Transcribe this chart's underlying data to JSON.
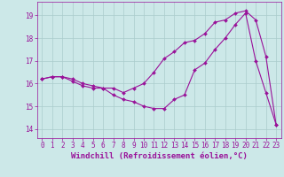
{
  "xlabel": "Windchill (Refroidissement éolien,°C)",
  "background_color": "#cce8e8",
  "line_color": "#991199",
  "grid_color": "#aacccc",
  "xlim": [
    -0.5,
    23.5
  ],
  "ylim": [
    13.6,
    19.6
  ],
  "yticks": [
    14,
    15,
    16,
    17,
    18,
    19
  ],
  "xticks": [
    0,
    1,
    2,
    3,
    4,
    5,
    6,
    7,
    8,
    9,
    10,
    11,
    12,
    13,
    14,
    15,
    16,
    17,
    18,
    19,
    20,
    21,
    22,
    23
  ],
  "line1_x": [
    0,
    1,
    2,
    3,
    4,
    5,
    6,
    7,
    8,
    9,
    10,
    11,
    12,
    13,
    14,
    15,
    16,
    17,
    18,
    19,
    20,
    21,
    22,
    23
  ],
  "line1_y": [
    16.2,
    16.3,
    16.3,
    16.1,
    15.9,
    15.8,
    15.8,
    15.8,
    15.6,
    15.8,
    16.0,
    16.5,
    17.1,
    17.4,
    17.8,
    17.9,
    18.2,
    18.7,
    18.8,
    19.1,
    19.2,
    18.8,
    17.2,
    14.2
  ],
  "line2_x": [
    0,
    1,
    2,
    3,
    4,
    5,
    6,
    7,
    8,
    9,
    10,
    11,
    12,
    13,
    14,
    15,
    16,
    17,
    18,
    19,
    20,
    21,
    22,
    23
  ],
  "line2_y": [
    16.2,
    16.3,
    16.3,
    16.2,
    16.0,
    15.9,
    15.8,
    15.5,
    15.3,
    15.2,
    15.0,
    14.9,
    14.9,
    15.3,
    15.5,
    16.6,
    16.9,
    17.5,
    18.0,
    18.6,
    19.1,
    17.0,
    15.6,
    14.2
  ],
  "marker": "D",
  "marker_size": 2.0,
  "line_width": 0.8,
  "tick_fontsize": 5.5,
  "xlabel_fontsize": 6.5
}
